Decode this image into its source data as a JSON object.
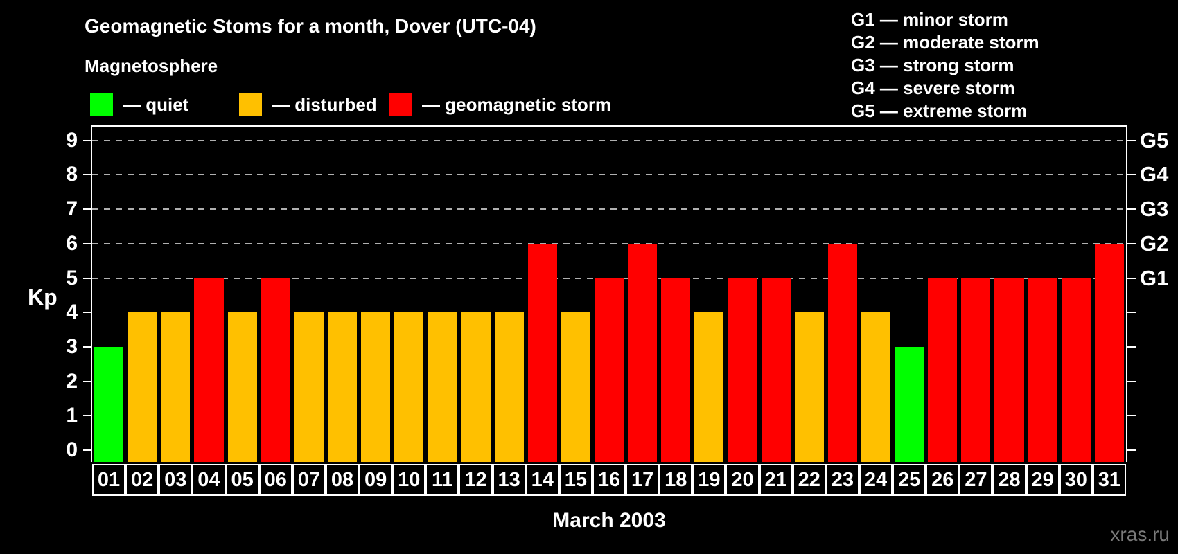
{
  "title": "Geomagnetic Stoms for a month, Dover (UTC-04)",
  "subtitle": "Magnetosphere",
  "legend": {
    "items": [
      {
        "label": "— quiet",
        "status": "quiet",
        "color": "#00ff00"
      },
      {
        "label": "— disturbed",
        "status": "disturbed",
        "color": "#ffc000"
      },
      {
        "label": "— geomagnetic storm",
        "status": "storm",
        "color": "#ff0000"
      }
    ]
  },
  "g_scale_legend": {
    "items": [
      "G1 — minor storm",
      "G2 — moderate storm",
      "G3 — strong storm",
      "G4 — severe storm",
      "G5 — extreme storm"
    ]
  },
  "watermark": "xras.ru",
  "chart_data": {
    "type": "bar",
    "title": "Geomagnetic Stoms for a month, Dover (UTC-04)",
    "xlabel": "March 2003",
    "ylabel": "Kp",
    "ylim": [
      0,
      9
    ],
    "grid": "horizontal dashed lines at Kp 5-9 (G1-G5 levels)",
    "legend_position": "top",
    "categories": [
      "01",
      "02",
      "03",
      "04",
      "05",
      "06",
      "07",
      "08",
      "09",
      "10",
      "11",
      "12",
      "13",
      "14",
      "15",
      "16",
      "17",
      "18",
      "19",
      "20",
      "21",
      "22",
      "23",
      "24",
      "25",
      "26",
      "27",
      "28",
      "29",
      "30",
      "31"
    ],
    "values": [
      3,
      4,
      4,
      5,
      4,
      5,
      4,
      4,
      4,
      4,
      4,
      4,
      4,
      6,
      4,
      5,
      6,
      5,
      4,
      5,
      5,
      4,
      6,
      4,
      3,
      5,
      5,
      5,
      5,
      5,
      6
    ],
    "statuses": [
      "quiet",
      "disturbed",
      "disturbed",
      "storm",
      "disturbed",
      "storm",
      "disturbed",
      "disturbed",
      "disturbed",
      "disturbed",
      "disturbed",
      "disturbed",
      "disturbed",
      "storm",
      "disturbed",
      "storm",
      "storm",
      "storm",
      "disturbed",
      "storm",
      "storm",
      "disturbed",
      "storm",
      "disturbed",
      "quiet",
      "storm",
      "storm",
      "storm",
      "storm",
      "storm",
      "storm"
    ],
    "color_rules": {
      "quiet": "#00ff00",
      "disturbed": "#ffc000",
      "storm": "#ff0000"
    },
    "y_ticks": [
      0,
      1,
      2,
      3,
      4,
      5,
      6,
      7,
      8,
      9
    ],
    "g_levels": [
      {
        "kp": 5,
        "label": "G1"
      },
      {
        "kp": 6,
        "label": "G2"
      },
      {
        "kp": 7,
        "label": "G3"
      },
      {
        "kp": 8,
        "label": "G4"
      },
      {
        "kp": 9,
        "label": "G5"
      }
    ],
    "gridlines_at_kp": [
      5,
      6,
      7,
      8,
      9
    ]
  }
}
